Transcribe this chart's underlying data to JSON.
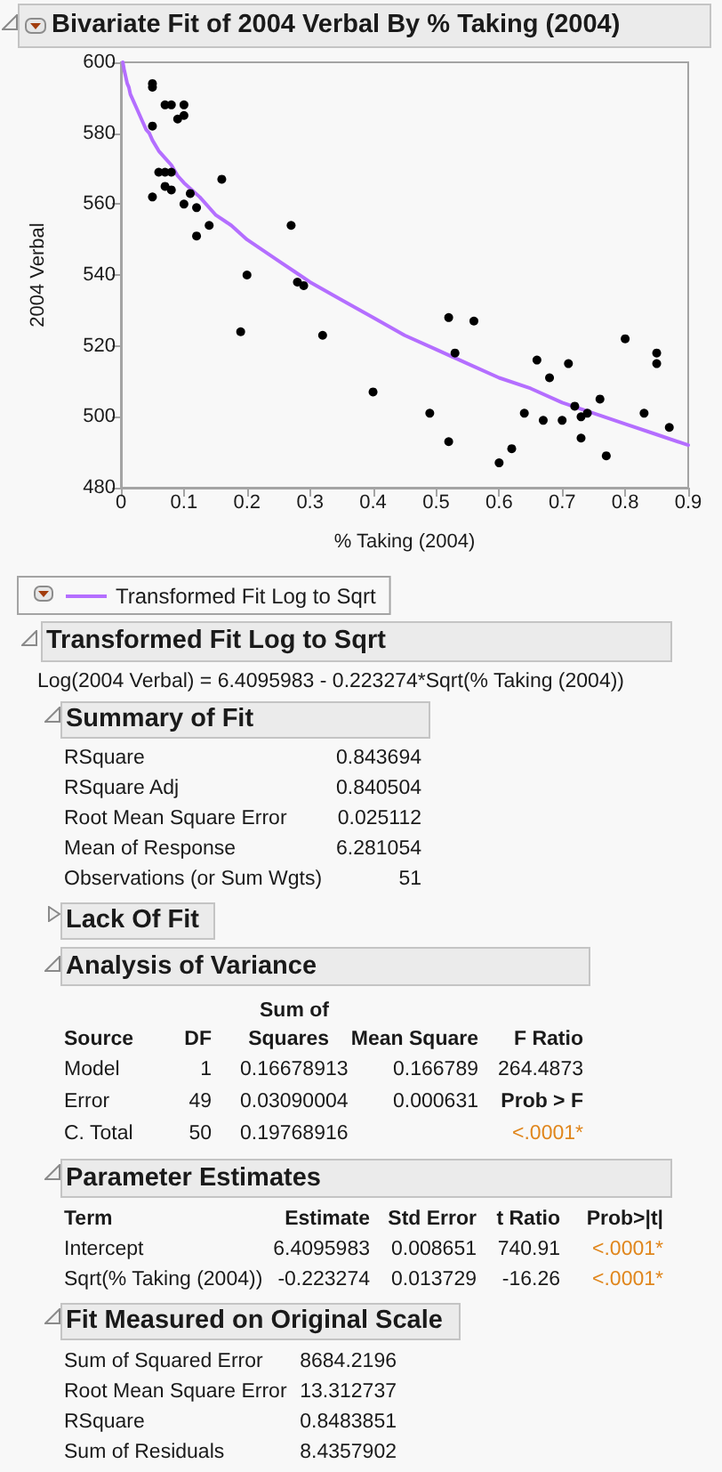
{
  "chart_data": [
    {
      "type": "scatter",
      "title": "Bivariate Fit of 2004 Verbal By % Taking (2004)",
      "xlabel": "% Taking (2004)",
      "ylabel": "2004 Verbal",
      "xlim": [
        0,
        0.9
      ],
      "xticks": [
        0,
        0.1,
        0.2,
        0.3,
        0.4,
        0.5,
        0.6,
        0.7,
        0.8,
        0.9
      ],
      "ylim": [
        480,
        600
      ],
      "yticks": [
        480,
        500,
        520,
        540,
        560,
        580,
        600
      ],
      "legend": "bottom",
      "series": [
        {
          "type": "scatter",
          "color": "#000000",
          "marker": "circle",
          "x": [
            0.05,
            0.05,
            0.05,
            0.07,
            0.08,
            0.1,
            0.1,
            0.09,
            0.06,
            0.07,
            0.08,
            0.07,
            0.08,
            0.05,
            0.11,
            0.1,
            0.12,
            0.12,
            0.14,
            0.16,
            0.2,
            0.19,
            0.27,
            0.28,
            0.29,
            0.32,
            0.4,
            0.49,
            0.52,
            0.53,
            0.52,
            0.56,
            0.6,
            0.62,
            0.64,
            0.66,
            0.67,
            0.68,
            0.7,
            0.71,
            0.72,
            0.73,
            0.74,
            0.73,
            0.76,
            0.77,
            0.8,
            0.83,
            0.85,
            0.85,
            0.87
          ],
          "values": [
            594,
            593,
            582,
            588,
            588,
            588,
            585,
            584,
            569,
            569,
            569,
            565,
            564,
            562,
            563,
            560,
            559,
            551,
            554,
            567,
            540,
            524,
            554,
            538,
            537,
            523,
            507,
            501,
            528,
            518,
            493,
            527,
            487,
            491,
            501,
            516,
            499,
            511,
            499,
            515,
            503,
            500,
            501,
            494,
            505,
            489,
            522,
            501,
            518,
            515,
            497
          ]
        },
        {
          "type": "line",
          "name": "Transformed Fit Log to Sqrt",
          "color": "#b46eff",
          "marker": "none",
          "x": [
            0.003,
            0.005,
            0.0075,
            0.01,
            0.0125,
            0.015,
            0.0175,
            0.02,
            0.025,
            0.03,
            0.035,
            0.04,
            0.045,
            0.05,
            0.06,
            0.07,
            0.08,
            0.09,
            0.1,
            0.125,
            0.15,
            0.175,
            0.2,
            0.225,
            0.25,
            0.275,
            0.3,
            0.35,
            0.4,
            0.45,
            0.5,
            0.55,
            0.6,
            0.65,
            0.7,
            0.75,
            0.8,
            0.85,
            0.9
          ],
          "values": [
            600,
            598,
            596,
            594,
            593,
            591,
            590,
            589,
            587,
            585,
            583,
            581,
            580,
            578,
            575,
            573,
            571,
            568,
            566,
            562,
            557,
            554,
            550,
            547,
            544,
            541,
            538,
            533,
            528,
            523,
            519,
            515,
            511,
            508,
            504,
            501,
            498,
            495,
            492
          ]
        }
      ]
    },
    {
      "type": "other",
      "title": "Transformed Fit Log to Sqrt",
      "annotations": [
        "Log(2004 Verbal) = 6.4095983 - 0.223274*Sqrt(% Taking (2004))"
      ]
    },
    {
      "type": "other",
      "title": "Summary of Fit",
      "annotations": [
        "RSquare",
        "0.843694",
        "RSquare Adj",
        "0.840504",
        "Root Mean Square Error",
        "0.025112",
        "Mean of Response",
        "6.281054",
        "Observations (or Sum Wgts)",
        "51"
      ]
    },
    {
      "type": "other",
      "title": "Lack Of Fit"
    },
    {
      "type": "other",
      "title": "Analysis of Variance",
      "annotations": [
        "Source",
        "DF",
        "Sum of Squares",
        "Mean Square",
        "F Ratio",
        "Model",
        "1",
        "0.16678913",
        "0.166789",
        "264.4873",
        "Error",
        "49",
        "0.03090004",
        "0.000631",
        "Prob > F",
        "C. Total",
        "50",
        "0.19768916",
        "<.0001*"
      ]
    },
    {
      "type": "other",
      "title": "Parameter Estimates",
      "annotations": [
        "Term",
        "Estimate",
        "Std Error",
        "t Ratio",
        "Prob>|t|",
        "Intercept",
        "6.4095983",
        "0.008651",
        "740.91",
        "<.0001*",
        "Sqrt(% Taking (2004))",
        "-0.223274",
        "0.013729",
        "-16.26",
        "<.0001*"
      ]
    },
    {
      "type": "other",
      "title": "Fit Measured on Original Scale",
      "annotations": [
        "Sum of Squared Error",
        "8684.2196",
        "Root Mean Square Error",
        "13.312737",
        "RSquare",
        "0.8483851",
        "Sum of Residuals",
        "8.4357902"
      ]
    }
  ]
}
